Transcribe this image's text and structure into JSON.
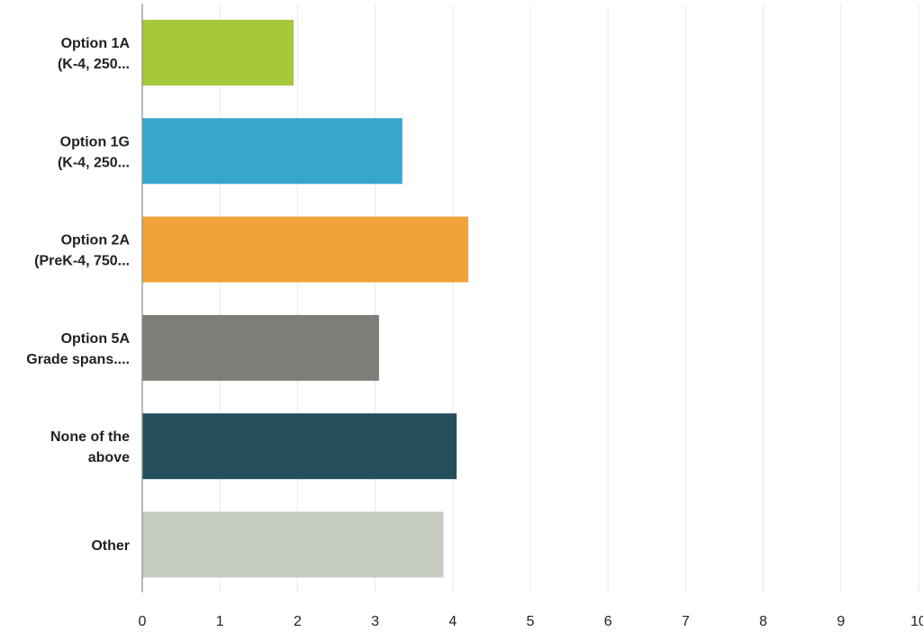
{
  "chart_data": {
    "type": "bar",
    "orientation": "horizontal",
    "categories": [
      [
        "Option 1A",
        "(K-4, 250..."
      ],
      [
        "Option 1G",
        "(K-4, 250..."
      ],
      [
        "Option 2A",
        "(PreK-4, 750..."
      ],
      [
        "Option 5A",
        "Grade spans...."
      ],
      [
        "None of the",
        "above"
      ],
      [
        "Other"
      ]
    ],
    "values": [
      1.95,
      3.35,
      4.2,
      3.05,
      4.05,
      3.88
    ],
    "colors": [
      "#a6c93b",
      "#36a6cc",
      "#f2a23b",
      "#7c7f77",
      "#254e5b",
      "#c6cbbf"
    ],
    "xlim": [
      0,
      10
    ],
    "xticks": [
      "0",
      "1",
      "2",
      "3",
      "4",
      "5",
      "6",
      "7",
      "8",
      "9",
      "10"
    ],
    "grid": true,
    "title": "",
    "xlabel": "",
    "ylabel": ""
  }
}
